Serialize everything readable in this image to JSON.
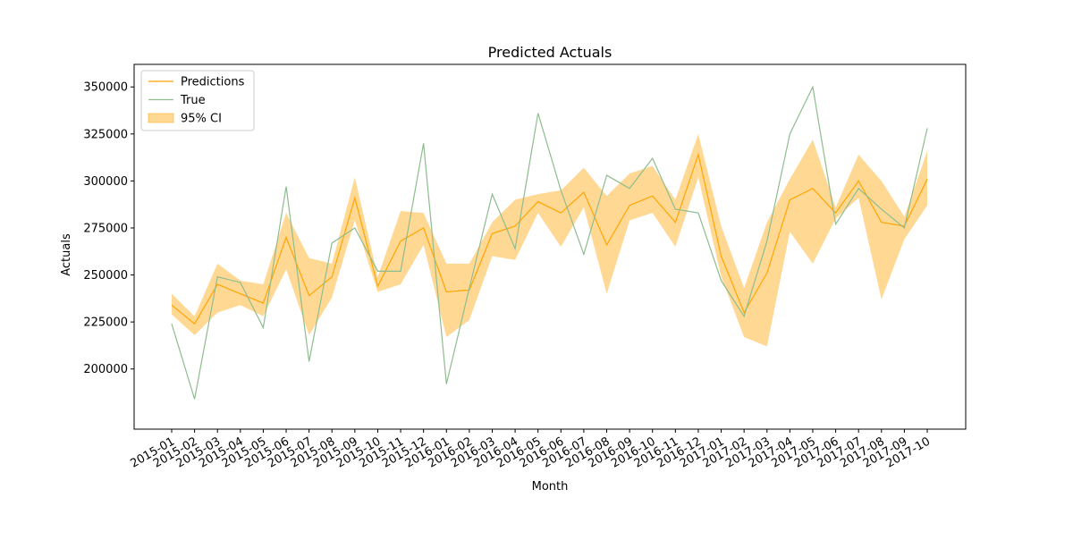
{
  "chart_data": {
    "type": "line",
    "title": "Predicted Actuals",
    "xlabel": "Month",
    "ylabel": "Actuals",
    "ylim": [
      168000,
      362000
    ],
    "yticks": [
      200000,
      225000,
      250000,
      275000,
      300000,
      325000,
      350000
    ],
    "grid": false,
    "legend_position": "top-left",
    "categories": [
      "2015-01",
      "2015-02",
      "2015-03",
      "2015-04",
      "2015-05",
      "2015-06",
      "2015-07",
      "2015-08",
      "2015-09",
      "2015-10",
      "2015-11",
      "2015-12",
      "2016-01",
      "2016-02",
      "2016-03",
      "2016-04",
      "2016-05",
      "2016-06",
      "2016-07",
      "2016-08",
      "2016-09",
      "2016-10",
      "2016-11",
      "2016-12",
      "2017-01",
      "2017-02",
      "2017-03",
      "2017-04",
      "2017-05",
      "2017-06",
      "2017-07",
      "2017-08",
      "2017-09",
      "2017-10"
    ],
    "series": [
      {
        "name": "Predictions",
        "color": "#ffa500",
        "values": [
          234000,
          224000,
          245000,
          240000,
          235000,
          270000,
          239000,
          249000,
          291000,
          244000,
          268000,
          275000,
          241000,
          242000,
          272000,
          276000,
          289000,
          283000,
          294000,
          266000,
          287000,
          292000,
          278000,
          314000,
          260000,
          230000,
          251000,
          290000,
          296000,
          283000,
          300000,
          278000,
          276000,
          301000
        ]
      },
      {
        "name": "True",
        "color": "#8fbc8f",
        "values": [
          224000,
          184000,
          249000,
          246000,
          222000,
          297000,
          204000,
          267000,
          275000,
          252000,
          252000,
          320000,
          192000,
          243000,
          293000,
          264000,
          336000,
          295000,
          261000,
          303000,
          296000,
          312000,
          285000,
          283000,
          247000,
          228000,
          268000,
          325000,
          350000,
          277000,
          296000,
          285000,
          275000,
          328000
        ]
      }
    ],
    "ci": {
      "name": "95% CI",
      "color": "#ffa500",
      "lower": [
        229000,
        218000,
        230000,
        234000,
        228000,
        253000,
        218000,
        238000,
        279000,
        241000,
        245000,
        266000,
        217000,
        226000,
        260000,
        258000,
        283000,
        265000,
        286000,
        240000,
        279000,
        283000,
        265000,
        302000,
        249000,
        217000,
        212000,
        273000,
        256000,
        280000,
        291000,
        237000,
        269000,
        287000
      ],
      "upper": [
        240000,
        228000,
        256000,
        247000,
        245000,
        283000,
        259000,
        256000,
        302000,
        249000,
        284000,
        283000,
        256000,
        256000,
        278000,
        290000,
        293000,
        295000,
        307000,
        292000,
        304000,
        308000,
        290000,
        325000,
        276000,
        243000,
        278000,
        301000,
        322000,
        286000,
        314000,
        300000,
        281000,
        316000
      ]
    }
  }
}
